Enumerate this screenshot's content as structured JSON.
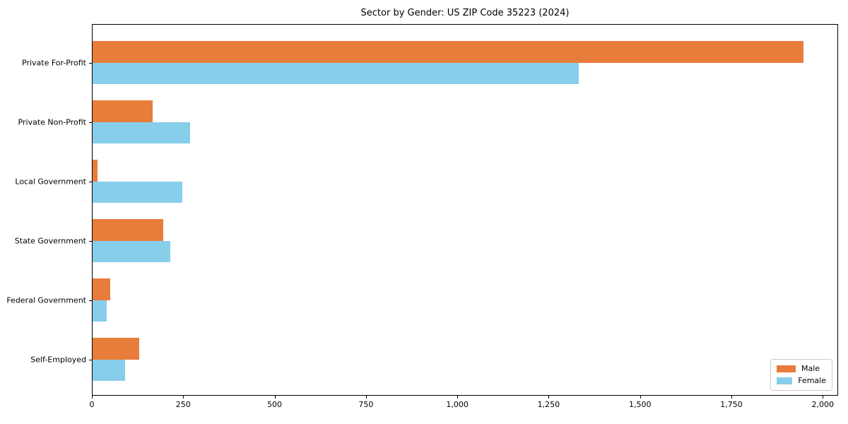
{
  "figure": {
    "background": "#ffffff"
  },
  "chart_data": {
    "type": "bar",
    "orientation": "horizontal",
    "title": "Sector by Gender: US ZIP Code 35223 (2024)",
    "categories": [
      "Private For-Profit",
      "Private Non-Profit",
      "Local Government",
      "State Government",
      "Federal Government",
      "Self-Employed"
    ],
    "series": [
      {
        "name": "Male",
        "color": "#e87d3b",
        "values": [
          1945,
          165,
          14,
          193,
          48,
          128
        ]
      },
      {
        "name": "Female",
        "color": "#87ceeb",
        "values": [
          1330,
          266,
          245,
          213,
          38,
          88
        ]
      }
    ],
    "xlabel": "",
    "ylabel": "",
    "xlim": [
      0,
      2042
    ],
    "grid": false,
    "x_ticks": [
      {
        "value": 0,
        "label": "0"
      },
      {
        "value": 250,
        "label": "250"
      },
      {
        "value": 500,
        "label": "500"
      },
      {
        "value": 750,
        "label": "750"
      },
      {
        "value": 1000,
        "label": "1,000"
      },
      {
        "value": 1250,
        "label": "1,250"
      },
      {
        "value": 1500,
        "label": "1,500"
      },
      {
        "value": 1750,
        "label": "1,750"
      },
      {
        "value": 2000,
        "label": "2,000"
      }
    ],
    "legend": {
      "position": "lower-right"
    }
  }
}
